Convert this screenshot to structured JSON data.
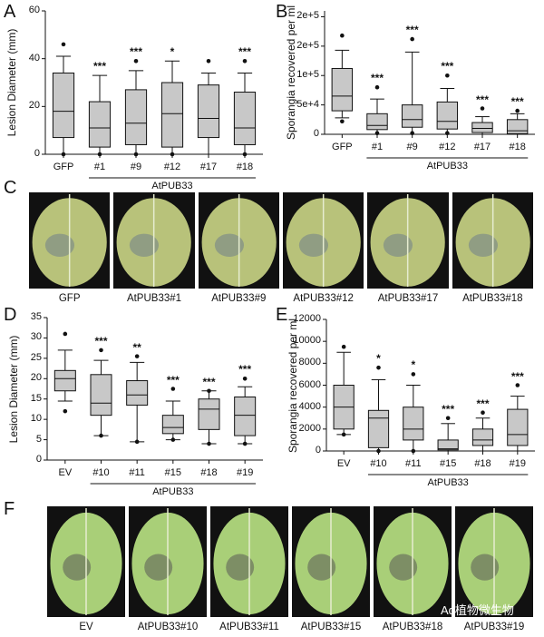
{
  "panels": {
    "a": "A",
    "b": "B",
    "c": "C",
    "d": "D",
    "e": "E",
    "f": "F"
  },
  "chart_data": [
    {
      "id": "A",
      "type": "box",
      "ylabel": "Lesion Diameter (mm)",
      "ylim": [
        0,
        60
      ],
      "yticks": [
        "0",
        "20",
        "40",
        "60"
      ],
      "categories": [
        "GFP",
        "#1",
        "#9",
        "#12",
        "#17",
        "#18"
      ],
      "group_label": "AtPUB33",
      "boxes": [
        {
          "min": 0,
          "q1": 7,
          "median": 18,
          "q3": 34,
          "max": 41,
          "outliers": [
            46,
            0
          ],
          "sig": ""
        },
        {
          "min": 0,
          "q1": 3,
          "median": 11,
          "q3": 22,
          "max": 33,
          "outliers": [
            0
          ],
          "sig": "***"
        },
        {
          "min": 0,
          "q1": 4,
          "median": 13,
          "q3": 27,
          "max": 35,
          "outliers": [
            39,
            0
          ],
          "sig": "***"
        },
        {
          "min": 0,
          "q1": 3,
          "median": 17,
          "q3": 30,
          "max": 39,
          "outliers": [
            0
          ],
          "sig": "*"
        },
        {
          "min": 0,
          "q1": 7,
          "median": 15,
          "q3": 29,
          "max": 34,
          "outliers": [
            39
          ],
          "sig": ""
        },
        {
          "min": 0,
          "q1": 4,
          "median": 11,
          "q3": 26,
          "max": 34,
          "outliers": [
            39,
            0
          ],
          "sig": "***"
        }
      ]
    },
    {
      "id": "B",
      "type": "box",
      "ylabel": "Sporangia recovered per ml",
      "ylim": [
        0,
        210000
      ],
      "yticks": [
        "0",
        "5e+4",
        "1e+5",
        "2e+5",
        "2e+5"
      ],
      "ytick_values": [
        0,
        50000,
        100000,
        150000,
        200000
      ],
      "categories": [
        "GFP",
        "#1",
        "#9",
        "#12",
        "#17",
        "#18"
      ],
      "group_label": "AtPUB33",
      "boxes": [
        {
          "min": 28000,
          "q1": 40000,
          "median": 65000,
          "q3": 112000,
          "max": 143000,
          "outliers": [
            168000,
            22000
          ],
          "sig": ""
        },
        {
          "min": 0,
          "q1": 8000,
          "median": 15000,
          "q3": 35000,
          "max": 60000,
          "outliers": [
            80000,
            2000
          ],
          "sig": "***"
        },
        {
          "min": 0,
          "q1": 12000,
          "median": 25000,
          "q3": 50000,
          "max": 140000,
          "outliers": [
            162000,
            2000
          ],
          "sig": "***"
        },
        {
          "min": 0,
          "q1": 9000,
          "median": 22000,
          "q3": 55000,
          "max": 78000,
          "outliers": [
            100000,
            2000
          ],
          "sig": "***"
        },
        {
          "min": 0,
          "q1": 3000,
          "median": 10000,
          "q3": 20000,
          "max": 30000,
          "outliers": [
            44000
          ],
          "sig": "***"
        },
        {
          "min": 0,
          "q1": 1000,
          "median": 6000,
          "q3": 25000,
          "max": 35000,
          "outliers": [
            40000
          ],
          "sig": "***"
        }
      ]
    },
    {
      "id": "D",
      "type": "box",
      "ylabel": "Lesion Diameter (mm)",
      "ylim": [
        0,
        35
      ],
      "yticks": [
        "0",
        "5",
        "10",
        "15",
        "20",
        "25",
        "30",
        "35"
      ],
      "categories": [
        "EV",
        "#10",
        "#11",
        "#15",
        "#18",
        "#19"
      ],
      "group_label": "AtPUB33",
      "boxes": [
        {
          "min": 14.5,
          "q1": 17,
          "median": 20,
          "q3": 22,
          "max": 27,
          "outliers": [
            31,
            12
          ],
          "sig": ""
        },
        {
          "min": 6,
          "q1": 11,
          "median": 14,
          "q3": 21,
          "max": 24.5,
          "outliers": [
            27,
            6
          ],
          "sig": "***"
        },
        {
          "min": 4.5,
          "q1": 13.5,
          "median": 16,
          "q3": 19.5,
          "max": 24,
          "outliers": [
            25.5,
            4.5
          ],
          "sig": "**"
        },
        {
          "min": 5,
          "q1": 6.5,
          "median": 8,
          "q3": 11,
          "max": 14.5,
          "outliers": [
            17.5,
            5
          ],
          "sig": "***"
        },
        {
          "min": 4,
          "q1": 7.5,
          "median": 12.5,
          "q3": 15,
          "max": 17,
          "outliers": [
            17,
            4
          ],
          "sig": "***"
        },
        {
          "min": 4,
          "q1": 6,
          "median": 11,
          "q3": 15.5,
          "max": 18,
          "outliers": [
            20,
            4
          ],
          "sig": "***"
        }
      ]
    },
    {
      "id": "E",
      "type": "box",
      "ylabel": "Sporangia recovered per ml",
      "ylim": [
        0,
        12000
      ],
      "yticks": [
        "0",
        "2000",
        "4000",
        "6000",
        "8000",
        "10000",
        "12000"
      ],
      "categories": [
        "EV",
        "#10",
        "#11",
        "#15",
        "#18",
        "#19"
      ],
      "group_label": "AtPUB33",
      "boxes": [
        {
          "min": 1500,
          "q1": 2000,
          "median": 4000,
          "q3": 6000,
          "max": 9000,
          "outliers": [
            9500,
            1500
          ],
          "sig": ""
        },
        {
          "min": 0,
          "q1": 300,
          "median": 3000,
          "q3": 3700,
          "max": 6500,
          "outliers": [
            7600,
            0
          ],
          "sig": "*"
        },
        {
          "min": 0,
          "q1": 1000,
          "median": 2000,
          "q3": 4000,
          "max": 6000,
          "outliers": [
            7000,
            0
          ],
          "sig": "*"
        },
        {
          "min": 0,
          "q1": 100,
          "median": 200,
          "q3": 1000,
          "max": 2500,
          "outliers": [
            3000
          ],
          "sig": "***"
        },
        {
          "min": 0,
          "q1": 500,
          "median": 1000,
          "q3": 2000,
          "max": 3000,
          "outliers": [
            3500
          ],
          "sig": "***"
        },
        {
          "min": 0,
          "q1": 500,
          "median": 1500,
          "q3": 3800,
          "max": 5000,
          "outliers": [
            6000
          ],
          "sig": "***"
        }
      ]
    }
  ],
  "leaves_c": [
    "GFP",
    "AtPUB33#1",
    "AtPUB33#9",
    "AtPUB33#12",
    "AtPUB33#17",
    "AtPUB33#18"
  ],
  "leaves_f": [
    "EV",
    "AtPUB33#10",
    "AtPUB33#11",
    "AtPUB33#15",
    "AtPUB33#18",
    "AtPUB33#19"
  ],
  "watermark": "Ad植物微生物",
  "colors": {
    "box": "#c8c8c8",
    "line": "#111111",
    "leaf_c": "#b8c27a",
    "leaf_f": "#a9cf78",
    "bg_c": "#111111",
    "bg_f": "#111111"
  }
}
